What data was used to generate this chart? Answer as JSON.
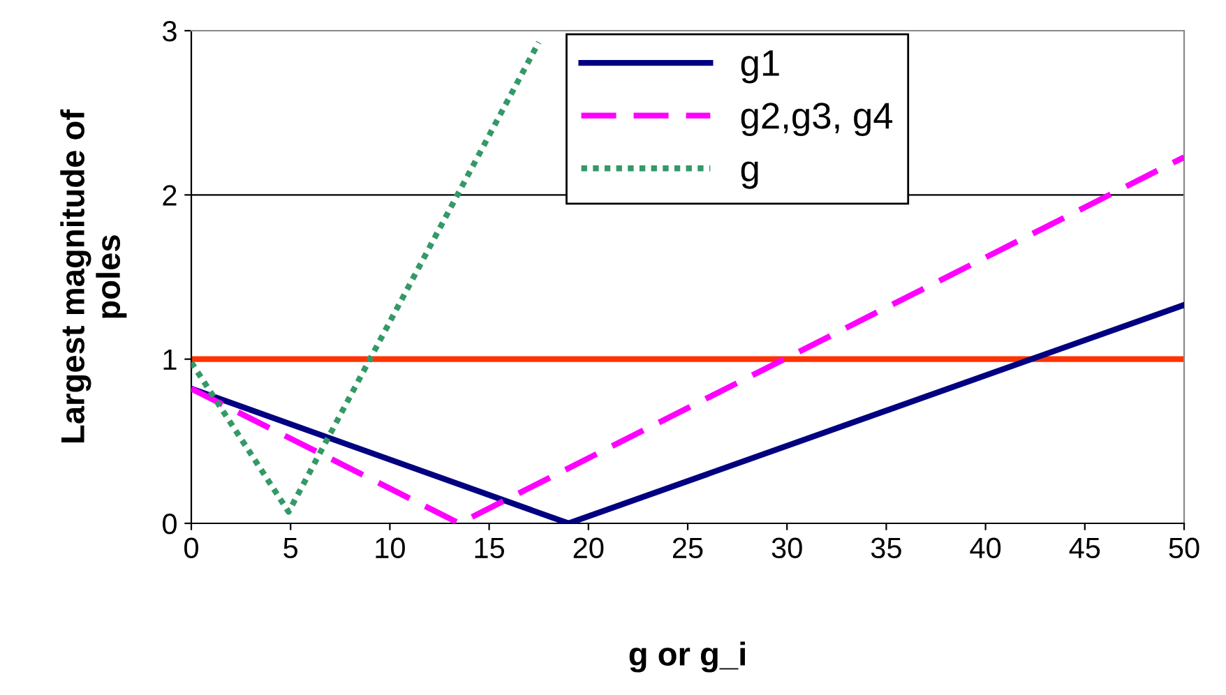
{
  "chart_data": {
    "type": "line",
    "xlabel": "g or g_i",
    "ylabel": "Largest magnitude of\npoles",
    "xlim": [
      0,
      50
    ],
    "ylim": [
      0,
      3
    ],
    "xticks": [
      0,
      5,
      10,
      15,
      20,
      25,
      30,
      35,
      40,
      45,
      50
    ],
    "yticks": [
      0,
      1,
      2,
      3
    ],
    "legend": "top",
    "series": [
      {
        "name": "g1",
        "color": "#000080",
        "line_style": "solid",
        "x": [
          0,
          19,
          50
        ],
        "values": [
          0.82,
          0,
          1.33
        ]
      },
      {
        "name": "g2,g3, g4",
        "color": "#ff00ff",
        "line_style": "dashed",
        "x": [
          0,
          13.5,
          50
        ],
        "values": [
          0.82,
          0,
          2.23
        ]
      },
      {
        "name": "g",
        "color": "#339966",
        "line_style": "dotted",
        "x": [
          0,
          4.9,
          17.5
        ],
        "values": [
          0.98,
          0.07,
          2.93
        ]
      }
    ],
    "ref_lines": [
      {
        "axis": "y",
        "value": 1,
        "color": "#ff3300"
      },
      {
        "axis": "y",
        "value": 2,
        "color": "#000000"
      }
    ]
  }
}
